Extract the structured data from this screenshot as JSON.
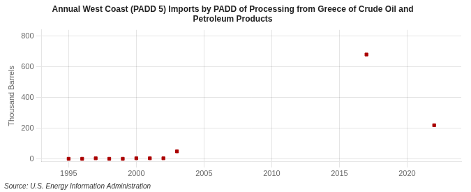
{
  "chart_data": {
    "type": "scatter",
    "title": "Annual West Coast (PADD 5) Imports by PADD of Processing from Greece of Crude Oil and\nPetroleum Products",
    "ylabel": "Thousand Barrels",
    "annotation": "Source: U.S. Energy Information Administration",
    "x": [
      1995,
      1996,
      1997,
      1998,
      1999,
      2000,
      2001,
      2002,
      2003,
      2017,
      2022
    ],
    "values": [
      2,
      2,
      5,
      2,
      2,
      5,
      5,
      5,
      50,
      680,
      220
    ],
    "color": "#aa0000",
    "marker": "square",
    "xlim": [
      1993,
      2024
    ],
    "xticks": [
      1995,
      2000,
      2005,
      2010,
      2015,
      2020
    ],
    "ylim": [
      -18,
      840
    ],
    "yticks": [
      0,
      200,
      400,
      600,
      800
    ],
    "grid": true
  }
}
